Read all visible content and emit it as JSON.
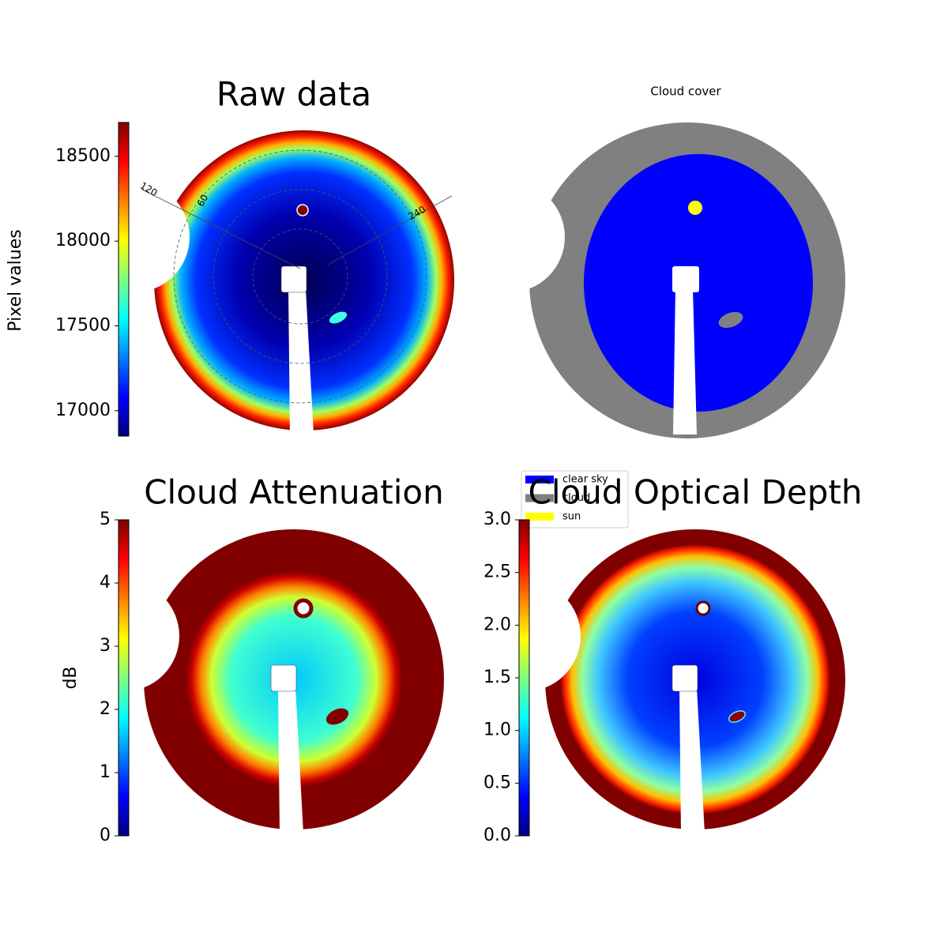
{
  "chart_data": [
    {
      "type": "image",
      "title": "Raw data",
      "colorbar": {
        "label": "Pixel values",
        "lim": [
          16850,
          18700
        ],
        "ticks": [
          17000,
          17500,
          18000,
          18500
        ]
      },
      "annotations": [
        "120",
        "60",
        "240"
      ]
    },
    {
      "type": "image",
      "title": "Cloud cover",
      "legend": [
        {
          "name": "clear sky",
          "color": "#0000ff"
        },
        {
          "name": "cloud",
          "color": "#808080"
        },
        {
          "name": "sun",
          "color": "#ffff00"
        }
      ]
    },
    {
      "type": "image",
      "title": "Cloud Attenuation",
      "colorbar": {
        "label": "dB",
        "lim": [
          0,
          5
        ],
        "ticks": [
          0,
          1,
          2,
          3,
          4,
          5
        ]
      }
    },
    {
      "type": "image",
      "title": "Cloud Optical Depth",
      "colorbar": {
        "lim": [
          0,
          3
        ],
        "ticks": [
          {
            "value": 0,
            "label": "0.0"
          },
          0.5,
          {
            "value": 1,
            "label": "1.0"
          },
          1.5,
          {
            "value": 2,
            "label": "2.0"
          },
          2.5,
          {
            "value": 3,
            "label": "3.0"
          }
        ]
      }
    }
  ]
}
